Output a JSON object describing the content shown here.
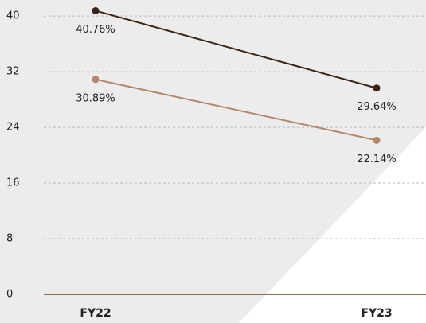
{
  "chart_data": {
    "type": "line",
    "categories": [
      "FY22",
      "FY23"
    ],
    "series": [
      {
        "color": "#3b2417",
        "values": [
          40.76,
          29.64
        ],
        "value_labels": [
          "40.76%",
          "29.64%"
        ]
      },
      {
        "color": "#b4876b",
        "values": [
          30.89,
          22.14
        ],
        "value_labels": [
          "30.89%",
          "22.14%"
        ]
      }
    ],
    "ylim": [
      0,
      42.3
    ],
    "yticks": [
      0,
      8,
      16,
      24,
      32,
      40
    ],
    "grid": true
  }
}
